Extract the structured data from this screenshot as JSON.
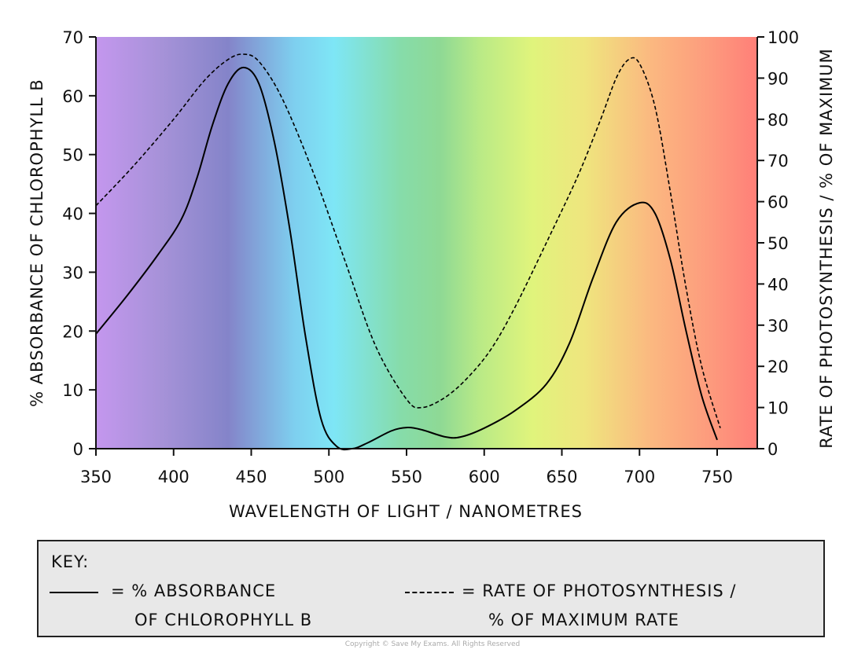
{
  "chart_data": {
    "type": "line",
    "xlabel": "WAVELENGTH OF LIGHT / NANOMETRES",
    "ylabel_left": "% ABSORBANCE OF CHLOROPHYLL B",
    "ylabel_right": "RATE OF PHOTOSYNTHESIS / % OF MAXIMUM",
    "xlim": [
      350,
      770
    ],
    "ylim_left": [
      0,
      70
    ],
    "ylim_right": [
      0,
      100
    ],
    "x_ticks": [
      350,
      400,
      450,
      500,
      550,
      600,
      650,
      700,
      750
    ],
    "y_ticks_left": [
      0,
      10,
      20,
      30,
      40,
      50,
      60,
      70
    ],
    "y_ticks_right": [
      0,
      10,
      20,
      30,
      40,
      50,
      60,
      70,
      80,
      90,
      100
    ],
    "background": "visible light spectrum gradient (violet to red)",
    "series": [
      {
        "name": "% ABSORBANCE OF CHLOROPHYLL B",
        "axis": "left",
        "style": "solid",
        "color": "#000000",
        "x": [
          350,
          370,
          390,
          405,
          415,
          425,
          435,
          445,
          455,
          465,
          475,
          485,
          495,
          505,
          515,
          525,
          540,
          550,
          560,
          575,
          585,
          600,
          620,
          640,
          655,
          670,
          685,
          700,
          710,
          720,
          730,
          740,
          750
        ],
        "y": [
          19.5,
          26,
          33,
          39,
          46,
          55,
          62,
          64.8,
          62,
          52,
          37,
          19,
          5,
          0.4,
          0,
          1,
          3,
          3.6,
          3.2,
          2,
          2,
          3.5,
          6.5,
          11,
          18,
          29,
          38.5,
          41.8,
          40,
          32,
          20,
          9,
          1.5
        ]
      },
      {
        "name": "RATE OF PHOTOSYNTHESIS / % OF MAXIMUM RATE",
        "axis": "right",
        "style": "dashed",
        "color": "#000000",
        "x": [
          350,
          375,
          400,
          420,
          435,
          445,
          455,
          470,
          490,
          510,
          530,
          550,
          560,
          575,
          590,
          605,
          620,
          640,
          660,
          675,
          685,
          693,
          700,
          710,
          720,
          730,
          740,
          752
        ],
        "y": [
          59,
          69,
          80,
          89.5,
          94.5,
          95.8,
          94,
          85,
          67,
          46,
          25,
          12,
          10,
          12.5,
          17.5,
          24.5,
          34.5,
          50,
          66,
          80,
          90,
          94.5,
          93.5,
          83,
          62,
          39,
          20,
          5
        ]
      }
    ]
  },
  "key": {
    "title": "KEY:",
    "solid_line_text": "= % ABSORBANCE",
    "solid_line_text2": "OF CHLOROPHYLL B",
    "dashed_line_text": "= RATE OF PHOTOSYNTHESIS /",
    "dashed_line_text2": "% OF MAXIMUM RATE"
  },
  "copyright": "Copyright © Save My Exams. All Rights Reserved"
}
